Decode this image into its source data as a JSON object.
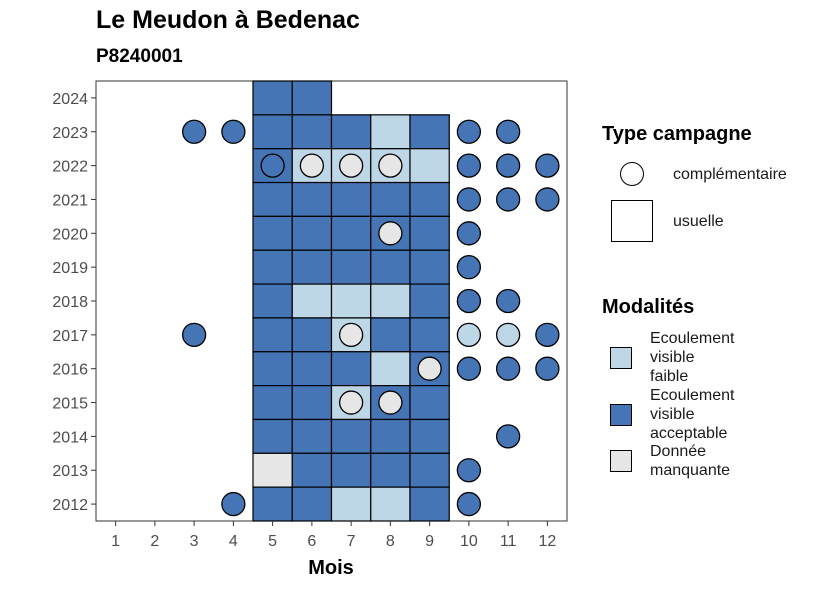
{
  "title": "Le Meudon à Bedenac",
  "subtitle": "P8240001",
  "colors": {
    "faible": "#BDD7E7",
    "acceptable": "#4575B4",
    "manquante": "#E6E6E6"
  },
  "legend": {
    "type_title": "Type campagne",
    "type_items": [
      {
        "label": "complémentaire",
        "shape": "circle"
      },
      {
        "label": "usuelle",
        "shape": "square"
      }
    ],
    "mod_title": "Modalités",
    "mod_items": [
      {
        "label": "Ecoulement visible faible",
        "key": "faible",
        "lines": [
          "Ecoulement",
          "visible",
          "faible"
        ]
      },
      {
        "label": "Ecoulement visible acceptable",
        "key": "acceptable",
        "lines": [
          "Ecoulement",
          "visible",
          "acceptable"
        ]
      },
      {
        "label": "Donnée manquante",
        "key": "manquante",
        "lines": [
          "Donnée",
          "manquante"
        ]
      }
    ]
  },
  "chart_data": {
    "type": "heatmap",
    "title": "Le Meudon à Bedenac",
    "subtitle": "P8240001",
    "xlabel": "Mois",
    "ylabel": "",
    "x_ticks": [
      1,
      2,
      3,
      4,
      5,
      6,
      7,
      8,
      9,
      10,
      11,
      12
    ],
    "y_ticks": [
      2012,
      2013,
      2014,
      2015,
      2016,
      2017,
      2018,
      2019,
      2020,
      2021,
      2022,
      2023,
      2024
    ],
    "xlim": [
      0.5,
      12.5
    ],
    "ylim": [
      2011.5,
      2024.5
    ],
    "grid": false,
    "legend_position": "right",
    "usuelle": [
      {
        "year": 2024,
        "months": {
          "5": "acceptable",
          "6": "acceptable"
        }
      },
      {
        "year": 2023,
        "months": {
          "5": "acceptable",
          "6": "acceptable",
          "7": "acceptable",
          "8": "faible",
          "9": "acceptable"
        }
      },
      {
        "year": 2022,
        "months": {
          "5": "acceptable",
          "6": "faible",
          "7": "faible",
          "8": "faible",
          "9": "faible"
        }
      },
      {
        "year": 2021,
        "months": {
          "5": "acceptable",
          "6": "acceptable",
          "7": "acceptable",
          "8": "acceptable",
          "9": "acceptable"
        }
      },
      {
        "year": 2020,
        "months": {
          "5": "acceptable",
          "6": "acceptable",
          "7": "acceptable",
          "8": "acceptable",
          "9": "acceptable"
        }
      },
      {
        "year": 2019,
        "months": {
          "5": "acceptable",
          "6": "acceptable",
          "7": "acceptable",
          "8": "acceptable",
          "9": "acceptable"
        }
      },
      {
        "year": 2018,
        "months": {
          "5": "acceptable",
          "6": "faible",
          "7": "faible",
          "8": "faible",
          "9": "acceptable"
        }
      },
      {
        "year": 2017,
        "months": {
          "5": "acceptable",
          "6": "acceptable",
          "7": "faible",
          "8": "acceptable",
          "9": "acceptable"
        }
      },
      {
        "year": 2016,
        "months": {
          "5": "acceptable",
          "6": "acceptable",
          "7": "acceptable",
          "8": "faible",
          "9": "acceptable"
        }
      },
      {
        "year": 2015,
        "months": {
          "5": "acceptable",
          "6": "acceptable",
          "7": "faible",
          "8": "acceptable",
          "9": "acceptable"
        }
      },
      {
        "year": 2014,
        "months": {
          "5": "acceptable",
          "6": "acceptable",
          "7": "acceptable",
          "8": "acceptable",
          "9": "acceptable"
        }
      },
      {
        "year": 2013,
        "months": {
          "5": "manquante",
          "6": "acceptable",
          "7": "acceptable",
          "8": "acceptable",
          "9": "acceptable"
        }
      },
      {
        "year": 2012,
        "months": {
          "5": "acceptable",
          "6": "acceptable",
          "7": "faible",
          "8": "faible",
          "9": "acceptable"
        }
      }
    ],
    "complementaire": [
      {
        "year": 2023,
        "months": {
          "3": "acceptable",
          "4": "acceptable",
          "10": "acceptable",
          "11": "acceptable"
        }
      },
      {
        "year": 2022,
        "months": {
          "5": "acceptable",
          "6": "manquante",
          "7": "manquante",
          "8": "manquante",
          "10": "acceptable",
          "11": "acceptable",
          "12": "acceptable"
        }
      },
      {
        "year": 2021,
        "months": {
          "10": "acceptable",
          "11": "acceptable",
          "12": "acceptable"
        }
      },
      {
        "year": 2020,
        "months": {
          "8": "manquante",
          "10": "acceptable"
        }
      },
      {
        "year": 2019,
        "months": {
          "10": "acceptable"
        }
      },
      {
        "year": 2018,
        "months": {
          "10": "acceptable",
          "11": "acceptable"
        }
      },
      {
        "year": 2017,
        "months": {
          "3": "acceptable",
          "7": "manquante",
          "10": "faible",
          "11": "faible",
          "12": "acceptable"
        }
      },
      {
        "year": 2016,
        "months": {
          "9": "manquante",
          "10": "acceptable",
          "11": "acceptable",
          "12": "acceptable"
        }
      },
      {
        "year": 2015,
        "months": {
          "7": "manquante",
          "8": "manquante"
        }
      },
      {
        "year": 2014,
        "months": {
          "11": "acceptable"
        }
      },
      {
        "year": 2013,
        "months": {
          "10": "acceptable"
        }
      },
      {
        "year": 2012,
        "months": {
          "4": "acceptable",
          "10": "acceptable"
        }
      }
    ]
  }
}
